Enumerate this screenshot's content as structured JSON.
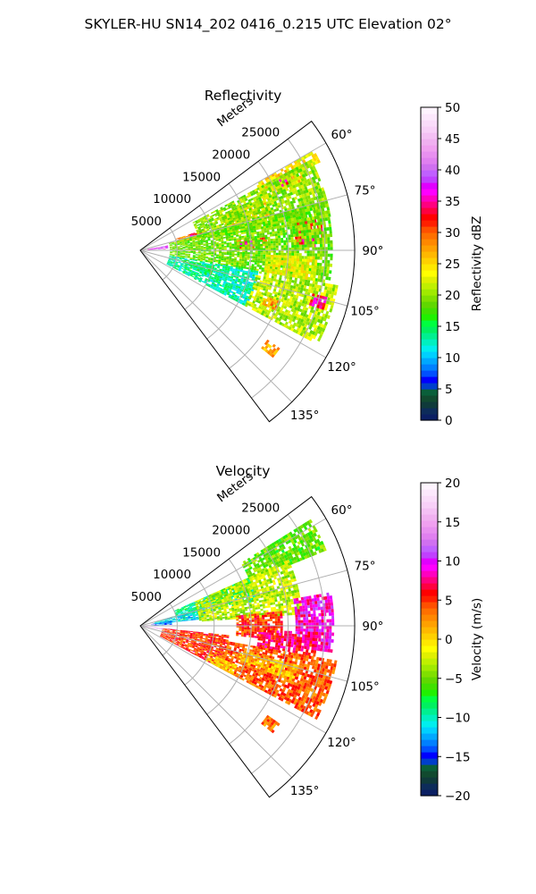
{
  "suptitle": "SKYLER-HU  SN14_202  0416_0.215 UTC Elevation 02°",
  "chart_data": [
    {
      "type": "heatmap",
      "projection": "polar-sector",
      "title": "Reflectivity",
      "theta_range_deg": [
        53,
        143
      ],
      "theta_ticks": [
        "60°",
        "75°",
        "90°",
        "105°",
        "120°",
        "135°"
      ],
      "theta_tick_values": [
        60,
        75,
        90,
        105,
        120,
        135
      ],
      "r_label": "Meters",
      "r_range": [
        0,
        29000
      ],
      "r_ticks": [
        "5000",
        "10000",
        "15000",
        "20000",
        "25000"
      ],
      "r_tick_values": [
        5000,
        10000,
        15000,
        20000,
        25000
      ],
      "grid": true,
      "colorbar": {
        "label": "Reflectivity dBZ",
        "range": [
          0,
          50
        ],
        "ticks": [
          "0",
          "5",
          "10",
          "15",
          "20",
          "25",
          "30",
          "35",
          "40",
          "45",
          "50"
        ],
        "tick_values": [
          0,
          5,
          10,
          15,
          20,
          25,
          30,
          35,
          40,
          45,
          50
        ],
        "colors": [
          "#0b1f63",
          "#0d2c5a",
          "#0f3a3a",
          "#114a2f",
          "#0a5f3a",
          "#003fcc",
          "#0000ff",
          "#0050ff",
          "#0080ff",
          "#00a8ff",
          "#00d0ff",
          "#00eeee",
          "#00f0c0",
          "#00f090",
          "#00f060",
          "#00ff40",
          "#20f000",
          "#40e000",
          "#60d800",
          "#80e000",
          "#a0ea00",
          "#c0f000",
          "#e0f000",
          "#ffff00",
          "#ffe800",
          "#ffd000",
          "#ffb800",
          "#ffa000",
          "#ff8800",
          "#ff7000",
          "#ff5000",
          "#ff2000",
          "#ff0000",
          "#ff0040",
          "#ff0080",
          "#ff00c0",
          "#ff00ff",
          "#e000ff",
          "#c040ff",
          "#c060ff",
          "#d070f0",
          "#e080f0",
          "#e890f0",
          "#f0a0f0",
          "#f0b0f0",
          "#f4c0f4",
          "#f8d0f8",
          "#fadcfa",
          "#fce8fc",
          "#fef4fe"
        ]
      },
      "cells": [
        {
          "theta": [
            80,
            88
          ],
          "r": [
            21000,
            25000
          ],
          "value": 32
        },
        {
          "theta": [
            83,
            86
          ],
          "r": [
            22500,
            24000
          ],
          "value": 42
        },
        {
          "theta": [
            86,
            89
          ],
          "r": [
            22000,
            23500
          ],
          "value": 36
        },
        {
          "theta": [
            84,
            90
          ],
          "r": [
            13000,
            17000
          ],
          "value": 30
        },
        {
          "theta": [
            85,
            88
          ],
          "r": [
            13500,
            15500
          ],
          "value": 37
        },
        {
          "theta": [
            67,
            75
          ],
          "r": [
            12000,
            18000
          ],
          "value": 26
        },
        {
          "theta": [
            72,
            78
          ],
          "r": [
            5000,
            9000
          ],
          "value": 28
        },
        {
          "theta": [
            72,
            76
          ],
          "r": [
            7000,
            8500
          ],
          "value": 34
        },
        {
          "theta": [
            60,
            68
          ],
          "r": [
            18000,
            24000
          ],
          "value": 25
        },
        {
          "theta": [
            62,
            66
          ],
          "r": [
            21000,
            22500
          ],
          "value": 35
        },
        {
          "theta": [
            60,
            64
          ],
          "r": [
            24000,
            27000
          ],
          "value": 24
        },
        {
          "theta": [
            80,
            87
          ],
          "r": [
            1000,
            3500
          ],
          "value": 38
        },
        {
          "theta": [
            62,
            80
          ],
          "r": [
            8000,
            26000
          ],
          "value": 20
        },
        {
          "theta": [
            75,
            100
          ],
          "r": [
            4000,
            26000
          ],
          "value": 19
        },
        {
          "theta": [
            100,
            118
          ],
          "r": [
            4000,
            16000
          ],
          "value": 13
        },
        {
          "theta": [
            102,
            110
          ],
          "r": [
            6000,
            10000
          ],
          "value": 15
        },
        {
          "theta": [
            100,
            118
          ],
          "r": [
            16000,
            27000
          ],
          "value": 21
        },
        {
          "theta": [
            104,
            108
          ],
          "r": [
            24000,
            26000
          ],
          "value": 34
        },
        {
          "theta": [
            110,
            114
          ],
          "r": [
            18000,
            20000
          ],
          "value": 28
        },
        {
          "theta": [
            125,
            129
          ],
          "r": [
            21000,
            23000
          ],
          "value": 27
        },
        {
          "theta": [
            92,
            100
          ],
          "r": [
            17000,
            24000
          ],
          "value": 23
        }
      ]
    },
    {
      "type": "heatmap",
      "projection": "polar-sector",
      "title": "Velocity",
      "theta_range_deg": [
        53,
        143
      ],
      "theta_ticks": [
        "60°",
        "75°",
        "90°",
        "105°",
        "120°",
        "135°"
      ],
      "theta_tick_values": [
        60,
        75,
        90,
        105,
        120,
        135
      ],
      "r_label": "Meters",
      "r_range": [
        0,
        29000
      ],
      "r_ticks": [
        "5000",
        "10000",
        "15000",
        "20000",
        "25000"
      ],
      "r_tick_values": [
        5000,
        10000,
        15000,
        20000,
        25000
      ],
      "grid": true,
      "colorbar": {
        "label": "Velocity (m/s)",
        "range": [
          -20,
          20
        ],
        "ticks": [
          "−20",
          "−15",
          "−10",
          "−5",
          "0",
          "5",
          "10",
          "15",
          "20"
        ],
        "tick_values": [
          -20,
          -15,
          -10,
          -5,
          0,
          5,
          10,
          15,
          20
        ],
        "colors": [
          "#0b1f63",
          "#0d2c5a",
          "#0f3a3a",
          "#114a2f",
          "#0a5f3a",
          "#003fcc",
          "#0000ff",
          "#0050ff",
          "#0080ff",
          "#00a8ff",
          "#00d0ff",
          "#00eeee",
          "#00f0c0",
          "#00f090",
          "#00f060",
          "#00ff40",
          "#20f000",
          "#40e000",
          "#60d800",
          "#80e000",
          "#a0ea00",
          "#c0f000",
          "#e0f000",
          "#ffff00",
          "#ffe800",
          "#ffd000",
          "#ffb800",
          "#ffa000",
          "#ff8800",
          "#ff7000",
          "#ff5000",
          "#ff2000",
          "#ff0000",
          "#ff0040",
          "#ff0080",
          "#ff00c0",
          "#ff00ff",
          "#e000ff",
          "#c040ff",
          "#c060ff",
          "#d070f0",
          "#e080f0",
          "#e890f0",
          "#f0a0f0",
          "#f0b0f0",
          "#f4c0f4",
          "#f8d0f8",
          "#fadcfa",
          "#fce8fc",
          "#fef4fe"
        ]
      },
      "cells": [
        {
          "theta": [
            58,
            68
          ],
          "r": [
            16000,
            27000
          ],
          "value": -5
        },
        {
          "theta": [
            66,
            78
          ],
          "r": [
            5000,
            16000
          ],
          "value": -9
        },
        {
          "theta": [
            74,
            84
          ],
          "r": [
            2000,
            9000
          ],
          "value": -11
        },
        {
          "theta": [
            80,
            88
          ],
          "r": [
            1500,
            4000
          ],
          "value": -13
        },
        {
          "theta": [
            83,
            87
          ],
          "r": [
            1000,
            2000
          ],
          "value": 18
        },
        {
          "theta": [
            66,
            86
          ],
          "r": [
            8000,
            22000
          ],
          "value": -3
        },
        {
          "theta": [
            80,
            98
          ],
          "r": [
            21000,
            26000
          ],
          "value": 9
        },
        {
          "theta": [
            84,
            96
          ],
          "r": [
            13000,
            19000
          ],
          "value": 5
        },
        {
          "theta": [
            96,
            118
          ],
          "r": [
            3000,
            12000
          ],
          "value": 5
        },
        {
          "theta": [
            100,
            118
          ],
          "r": [
            12000,
            27000
          ],
          "value": 4
        },
        {
          "theta": [
            92,
            100
          ],
          "r": [
            16000,
            24000
          ],
          "value": 7
        },
        {
          "theta": [
            104,
            110
          ],
          "r": [
            14000,
            22000
          ],
          "value": 1
        },
        {
          "theta": [
            112,
            118
          ],
          "r": [
            10000,
            14000
          ],
          "value": 0
        },
        {
          "theta": [
            96,
            100
          ],
          "r": [
            0,
            3000
          ],
          "value": 16
        },
        {
          "theta": [
            125,
            129
          ],
          "r": [
            21000,
            23000
          ],
          "value": 3
        }
      ]
    }
  ]
}
